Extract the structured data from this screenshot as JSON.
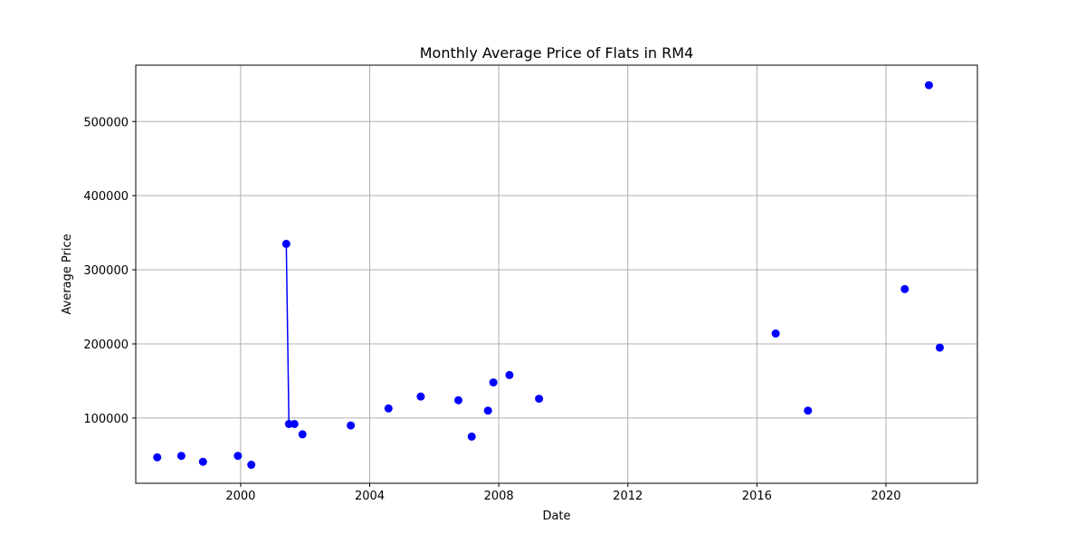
{
  "chart_data": {
    "type": "line",
    "title": "Monthly Average Price of Flats in RM4",
    "xlabel": "Date",
    "ylabel": "Average Price",
    "xlim": [
      "1996-10-01",
      "2022-11-01"
    ],
    "ylim": [
      12000,
      576000
    ],
    "grid": true,
    "line_color": "#0000ff",
    "marker_color": "#0000ff",
    "x_ticks": [
      {
        "date": "2000-01-01",
        "label": "2000"
      },
      {
        "date": "2004-01-01",
        "label": "2004"
      },
      {
        "date": "2008-01-01",
        "label": "2008"
      },
      {
        "date": "2012-01-01",
        "label": "2012"
      },
      {
        "date": "2016-01-01",
        "label": "2016"
      },
      {
        "date": "2020-01-01",
        "label": "2020"
      }
    ],
    "y_ticks": [
      {
        "value": 100000,
        "label": "100000"
      },
      {
        "value": 200000,
        "label": "200000"
      },
      {
        "value": 300000,
        "label": "300000"
      },
      {
        "value": 400000,
        "label": "400000"
      },
      {
        "value": 500000,
        "label": "500000"
      }
    ],
    "points": [
      {
        "date": "1997-06-01",
        "value": 47000
      },
      {
        "date": "1998-03-01",
        "value": 49000
      },
      {
        "date": "1998-11-01",
        "value": 41000
      },
      {
        "date": "1999-12-01",
        "value": 49000
      },
      {
        "date": "2000-05-01",
        "value": 37000
      },
      {
        "date": "2001-06-01",
        "value": 335000
      },
      {
        "date": "2001-07-01",
        "value": 92000
      },
      {
        "date": "2001-09-01",
        "value": 92000
      },
      {
        "date": "2001-12-01",
        "value": 78000
      },
      {
        "date": "2003-06-01",
        "value": 90000
      },
      {
        "date": "2004-08-01",
        "value": 113000
      },
      {
        "date": "2005-08-01",
        "value": 129000
      },
      {
        "date": "2006-10-01",
        "value": 124000
      },
      {
        "date": "2007-03-01",
        "value": 75000
      },
      {
        "date": "2007-09-01",
        "value": 110000
      },
      {
        "date": "2007-11-01",
        "value": 148000
      },
      {
        "date": "2008-05-01",
        "value": 158000
      },
      {
        "date": "2009-04-01",
        "value": 126000
      },
      {
        "date": "2016-08-01",
        "value": 214000
      },
      {
        "date": "2017-08-01",
        "value": 110000
      },
      {
        "date": "2020-08-01",
        "value": 274000
      },
      {
        "date": "2021-05-01",
        "value": 549000
      },
      {
        "date": "2021-09-01",
        "value": 195000
      }
    ]
  }
}
